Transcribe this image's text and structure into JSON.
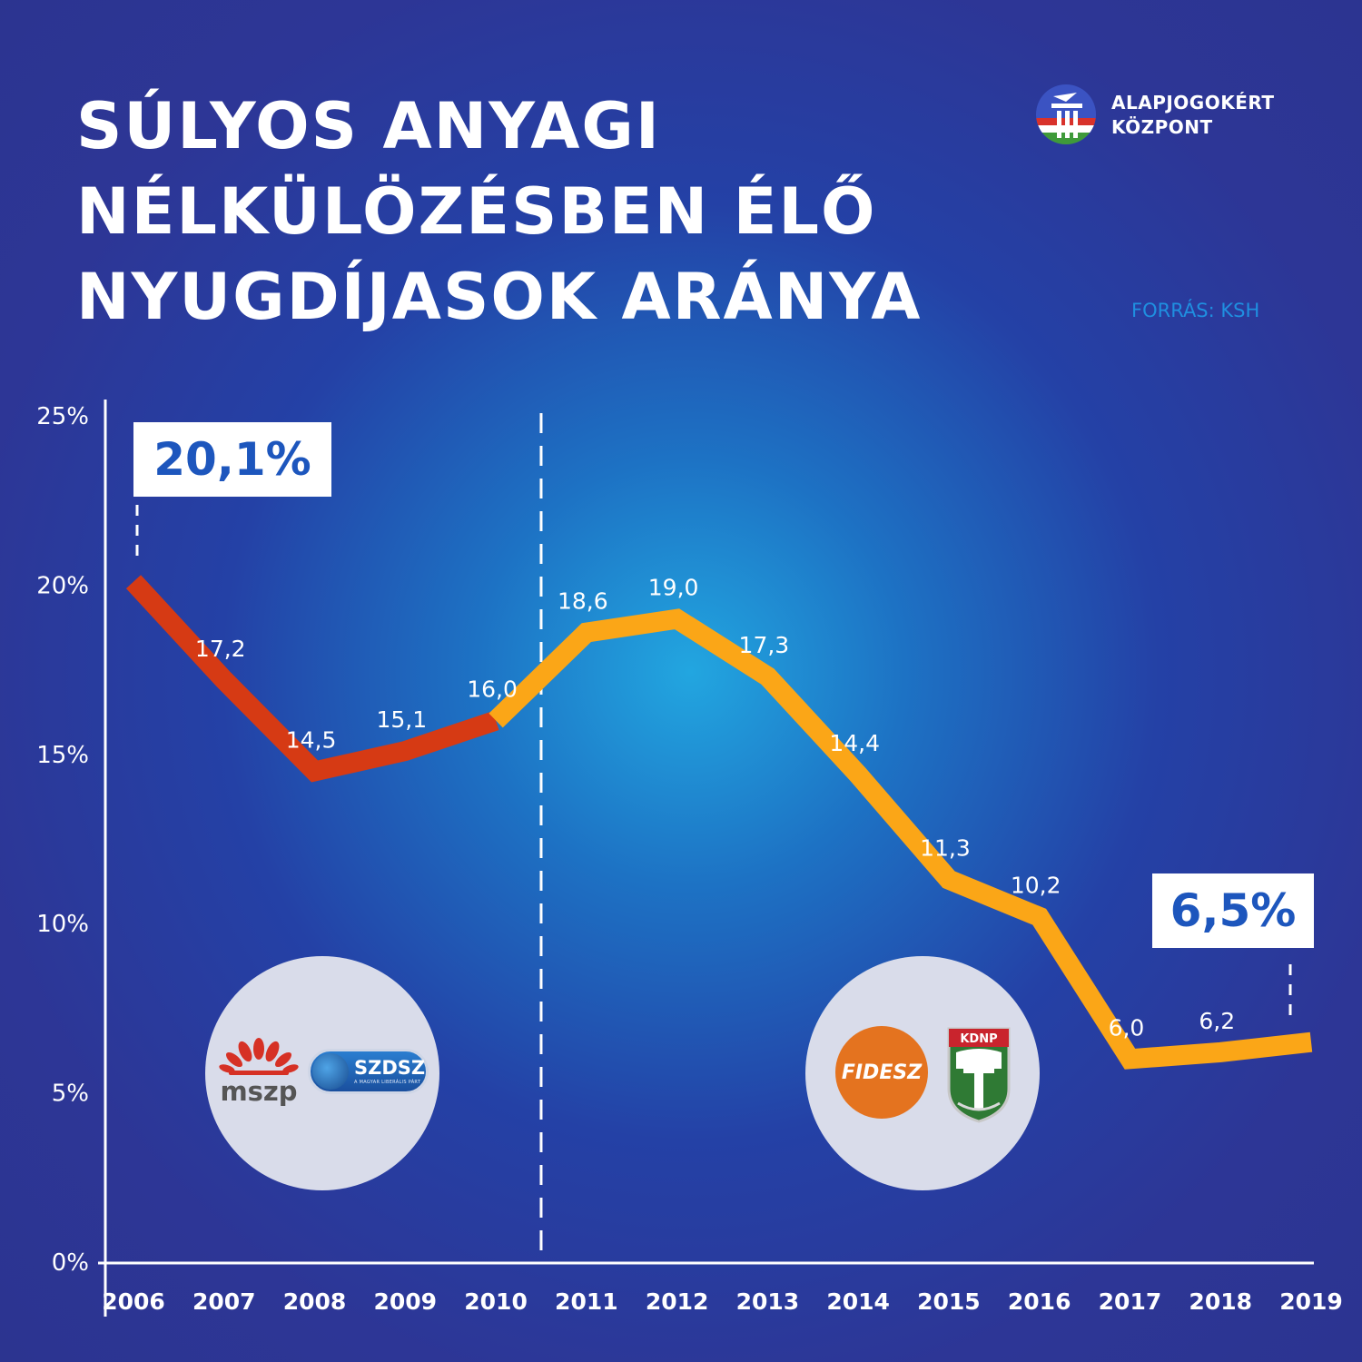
{
  "title": {
    "line1": "SÚLYOS ANYAGI",
    "line2": "NÉLKÜLÖZÉSBEN ÉLŐ",
    "line3": "NYUGDÍJASOK ARÁNYA"
  },
  "brand": {
    "line1": "ALAPJOGOKÉRT",
    "line2": "KÖZPONT"
  },
  "source": "FORRÁS: KSH",
  "callouts": {
    "start": "20,1%",
    "end": "6,5%"
  },
  "parties": {
    "left": {
      "mszp": "mszp",
      "szdsz": "SZDSZ",
      "szdsz_sub": "A MAGYAR LIBERÁLIS PÁRT"
    },
    "right": {
      "fidesz": "FIDESZ",
      "kdnp": "KDNP"
    }
  },
  "colors": {
    "before_2010": "#d63a14",
    "after_2010": "#fba617",
    "callout_text": "#1d56bd"
  },
  "chart_data": {
    "type": "line",
    "categories": [
      "2006",
      "2007",
      "2008",
      "2009",
      "2010",
      "2011",
      "2012",
      "2013",
      "2014",
      "2015",
      "2016",
      "2017",
      "2018",
      "2019"
    ],
    "values": [
      20.1,
      17.2,
      14.5,
      15.1,
      16.0,
      18.6,
      19.0,
      17.3,
      14.4,
      11.3,
      10.2,
      6.0,
      6.2,
      6.5
    ],
    "data_labels": [
      "",
      "17,2",
      "14,5",
      "15,1",
      "16,0",
      "18,6",
      "19,0",
      "17,3",
      "14,4",
      "11,3",
      "10,2",
      "6,0",
      "6,2",
      ""
    ],
    "y_ticks": [
      0,
      5,
      10,
      15,
      20,
      25
    ],
    "y_tick_labels": [
      "0%",
      "5%",
      "10%",
      "15%",
      "20%",
      "25%"
    ],
    "ylim": [
      0,
      25
    ],
    "segments": [
      {
        "from": "2006",
        "to": "2010",
        "color": "#d63a14"
      },
      {
        "from": "2010",
        "to": "2019",
        "color": "#fba617"
      }
    ],
    "divider_after": "2010",
    "grid": false
  }
}
